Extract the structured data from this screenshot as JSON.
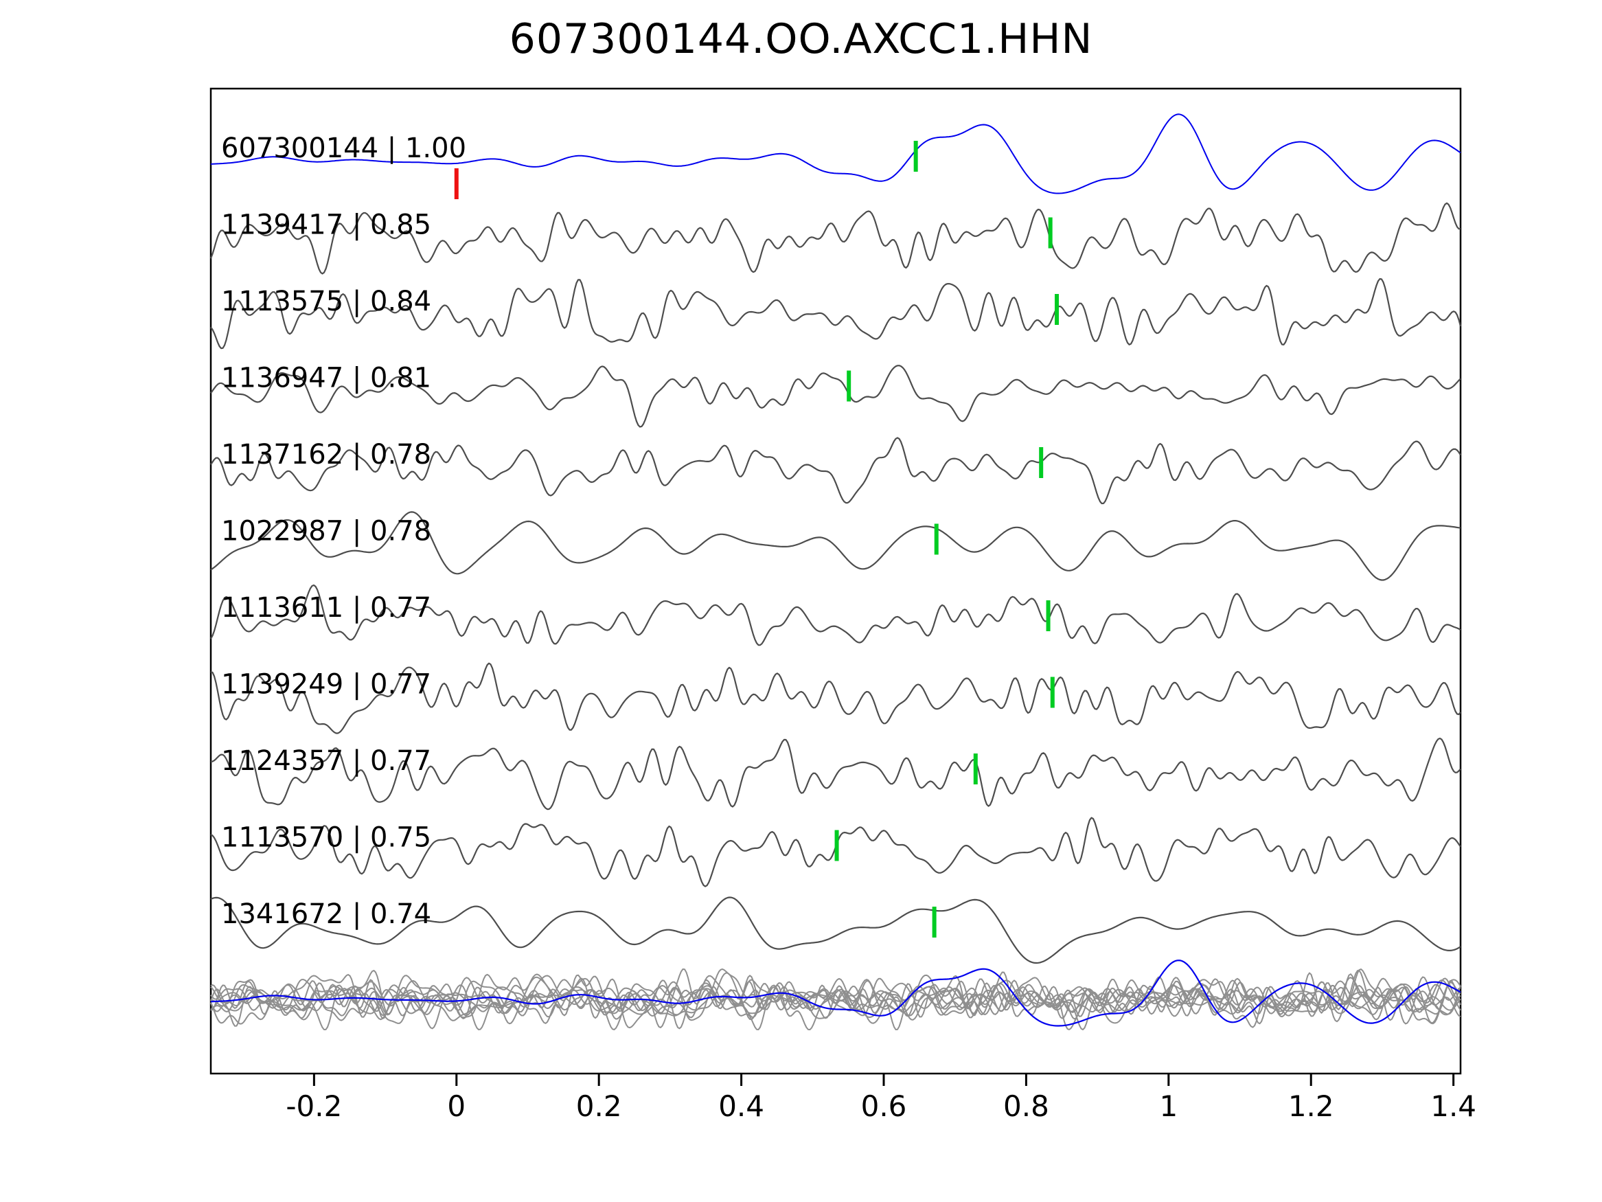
{
  "chart_data": {
    "type": "line",
    "title": "607300144.OO.AXCC1.HHN",
    "xlabel": "",
    "ylabel": "",
    "xlim": [
      -0.345,
      1.41
    ],
    "x_ticks": [
      -0.2,
      0,
      0.2,
      0.4,
      0.6,
      0.8,
      1,
      1.2,
      1.4
    ],
    "x_tick_labels": [
      "-0.2",
      "0",
      "0.2",
      "0.4",
      "0.6",
      "0.8",
      "1",
      "1.2",
      "1.4"
    ],
    "grid": false,
    "legend_position": "none",
    "traces": [
      {
        "label": "607300144 | 1.00",
        "event_id": "607300144",
        "correlation": 1.0,
        "is_template": true,
        "ref_pick_x": 0.0,
        "pick_x": 0.645,
        "smooth": true
      },
      {
        "label": "1139417 | 0.85",
        "event_id": "1139417",
        "correlation": 0.85,
        "pick_x": 0.834
      },
      {
        "label": "1113575 | 0.84",
        "event_id": "1113575",
        "correlation": 0.84,
        "pick_x": 0.843
      },
      {
        "label": "1136947 | 0.81",
        "event_id": "1136947",
        "correlation": 0.81,
        "pick_x": 0.551
      },
      {
        "label": "1137162 | 0.78",
        "event_id": "1137162",
        "correlation": 0.78,
        "pick_x": 0.821
      },
      {
        "label": "1022987 | 0.78",
        "event_id": "1022987",
        "correlation": 0.78,
        "pick_x": 0.674,
        "smooth": true
      },
      {
        "label": "1113611 | 0.77",
        "event_id": "1113611",
        "correlation": 0.77,
        "pick_x": 0.831
      },
      {
        "label": "1139249 | 0.77",
        "event_id": "1139249",
        "correlation": 0.77,
        "pick_x": 0.837
      },
      {
        "label": "1124357 | 0.77",
        "event_id": "1124357",
        "correlation": 0.77,
        "pick_x": 0.729
      },
      {
        "label": "1113570 | 0.75",
        "event_id": "1113570",
        "correlation": 0.75,
        "pick_x": 0.534
      },
      {
        "label": "1341672 | 0.74",
        "event_id": "1341672",
        "correlation": 0.74,
        "pick_x": 0.671,
        "smooth": true
      }
    ],
    "overlay_row": {
      "gray_trace_count": 10,
      "includes_template_trace": true
    }
  },
  "colors": {
    "template": "#0000ee",
    "trace": "#4d4d4d",
    "overlay_trace": "#8f8f8f",
    "pick": "#00cc22",
    "ref_pick": "#ee1111",
    "axis": "#000000",
    "background": "#ffffff"
  }
}
